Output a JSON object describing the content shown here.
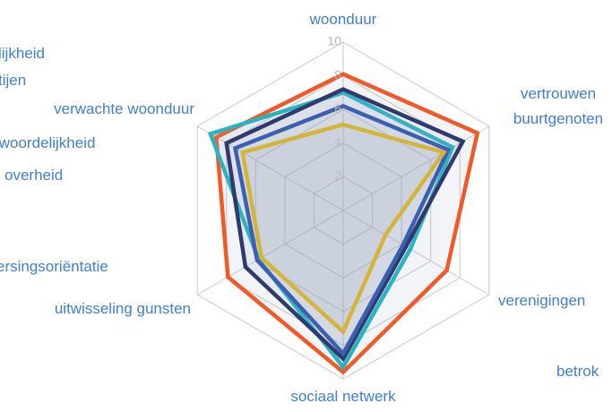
{
  "chart_data": {
    "type": "radar",
    "categories": [
      "woonduur",
      "vertrouwen buurtgenoten",
      "verenigingen",
      "sociaal netwerk",
      "uitwisseling gunsten",
      "verwachte woonduur"
    ],
    "rlim": [
      0,
      10
    ],
    "rticks": [
      2,
      4,
      6,
      8,
      10
    ],
    "grid": true,
    "series": [
      {
        "color": "#f05a28",
        "values": [
          8.1,
          9.2,
          7.1,
          9.6,
          7.9,
          8.7
        ]
      },
      {
        "color": "#2ab3c0",
        "values": [
          7.0,
          7.5,
          4.6,
          9.3,
          5.8,
          9.1
        ]
      },
      {
        "color": "#2e3a6b",
        "values": [
          7.2,
          8.2,
          4.3,
          8.8,
          6.7,
          8.0
        ]
      },
      {
        "color": "#3c5fb0",
        "values": [
          6.2,
          7.2,
          4.1,
          8.5,
          5.9,
          7.4
        ]
      },
      {
        "color": "#d4b43a",
        "values": [
          5.1,
          6.9,
          2.9,
          7.2,
          5.6,
          6.9
        ]
      }
    ],
    "annotations": [
      "lijkheid",
      "tijen",
      "twoordelijkheid",
      "overheid",
      "ersingsoriëntatie",
      "betrok"
    ]
  }
}
